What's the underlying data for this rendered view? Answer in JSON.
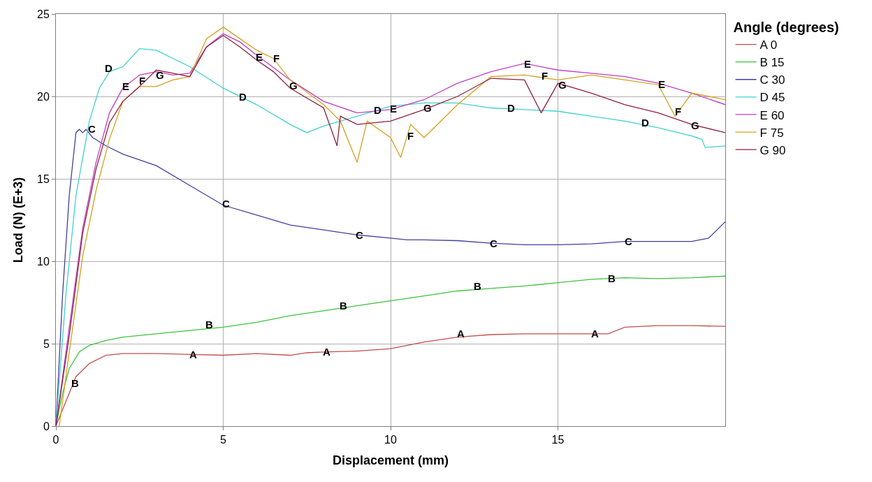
{
  "chart_data": {
    "type": "line",
    "xlabel": "Displacement (mm)",
    "ylabel": "Load (N) (E+3)",
    "legend_title": "Angle (degrees)",
    "legend": "right",
    "grid": true,
    "marker": "none",
    "line_style": "solid",
    "xlim": [
      0,
      20
    ],
    "xticks": [
      0,
      5,
      10,
      15
    ],
    "ylim": [
      0,
      25
    ],
    "yticks": [
      0,
      5,
      10,
      15,
      20,
      25
    ],
    "series": [
      {
        "name": "A 0",
        "color": "#c0504d",
        "x": [
          0,
          0.3,
          0.6,
          1,
          1.5,
          2,
          3,
          4,
          5,
          6,
          7,
          7.5,
          8,
          9,
          10,
          10.5,
          11,
          12,
          13,
          14,
          15,
          16,
          16.5,
          17,
          18,
          19,
          20
        ],
        "values": [
          0,
          1.5,
          3,
          3.8,
          4.3,
          4.4,
          4.4,
          4.35,
          4.3,
          4.4,
          4.3,
          4.45,
          4.5,
          4.55,
          4.7,
          4.9,
          5.1,
          5.4,
          5.55,
          5.6,
          5.6,
          5.6,
          5.6,
          6,
          6.1,
          6.1,
          6.05
        ]
      },
      {
        "name": "B 15",
        "color": "#40c040",
        "x": [
          0,
          0.2,
          0.4,
          0.7,
          1,
          1.5,
          2,
          3,
          4,
          5,
          6,
          7,
          8,
          9,
          10,
          11,
          12,
          13,
          14,
          15,
          16,
          17,
          18,
          19,
          20
        ],
        "values": [
          0,
          2,
          3.5,
          4.5,
          4.9,
          5.2,
          5.4,
          5.6,
          5.8,
          6,
          6.3,
          6.7,
          7,
          7.3,
          7.6,
          7.9,
          8.2,
          8.35,
          8.5,
          8.7,
          8.9,
          9,
          8.95,
          9,
          9.1
        ]
      },
      {
        "name": "C 30",
        "color": "#4040a0",
        "x": [
          0,
          0.2,
          0.4,
          0.6,
          0.7,
          0.8,
          0.9,
          1.1,
          1.5,
          2,
          3,
          4,
          5,
          6,
          7,
          8,
          9,
          10,
          10.5,
          11,
          12,
          13,
          14,
          15,
          16,
          17,
          18,
          19,
          19.5,
          20
        ],
        "values": [
          0,
          8,
          14,
          17.8,
          18,
          17.8,
          18,
          17.5,
          17,
          16.5,
          15.8,
          14.6,
          13.4,
          12.8,
          12.2,
          11.9,
          11.6,
          11.4,
          11.3,
          11.3,
          11.25,
          11.1,
          11,
          11,
          11.05,
          11.2,
          11.2,
          11.2,
          11.4,
          12.4
        ]
      },
      {
        "name": "D 45",
        "color": "#40d0d0",
        "x": [
          0,
          0.3,
          0.6,
          1,
          1.3,
          1.6,
          2,
          2.5,
          3,
          3.5,
          4,
          5,
          6,
          7,
          7.5,
          8,
          9,
          10,
          11,
          12,
          13,
          14,
          15,
          16,
          17,
          18,
          19,
          19.3,
          19.4,
          20
        ],
        "values": [
          0,
          8,
          14,
          18.5,
          20.5,
          21.5,
          21.8,
          22.9,
          22.8,
          22.3,
          21.8,
          20.5,
          19.5,
          18.3,
          17.8,
          18.2,
          18.8,
          19.4,
          19.6,
          19.6,
          19.3,
          19.2,
          19.1,
          18.8,
          18.5,
          18.1,
          17.6,
          17.4,
          16.9,
          17
        ]
      },
      {
        "name": "E 60",
        "color": "#c040c0",
        "x": [
          0,
          0.4,
          0.8,
          1.2,
          1.6,
          2,
          2.5,
          3,
          3.5,
          4,
          4.5,
          5,
          5.5,
          6,
          7,
          8,
          9,
          10,
          11,
          12,
          13,
          14,
          14.5,
          15,
          16,
          17,
          18,
          19,
          20
        ],
        "values": [
          0,
          6,
          12,
          16,
          19,
          20.5,
          21.3,
          21.5,
          21.3,
          21.4,
          23,
          23.8,
          23.3,
          22.5,
          21,
          19.7,
          19,
          19.2,
          19.8,
          20.8,
          21.5,
          22,
          21.8,
          21.6,
          21.4,
          21.2,
          20.8,
          20.2,
          19.5
        ]
      },
      {
        "name": "F 75",
        "color": "#d4a020",
        "x": [
          0.1,
          0.4,
          0.8,
          1.2,
          1.6,
          2,
          2.5,
          3,
          3.5,
          4,
          4.5,
          5,
          5.5,
          6,
          6.5,
          7,
          8,
          8.5,
          9,
          9.3,
          10,
          10.3,
          10.6,
          11,
          12,
          13,
          14,
          15,
          16,
          17,
          18,
          18.5,
          19,
          20
        ],
        "values": [
          0,
          4.5,
          10.3,
          14.3,
          17.4,
          19.7,
          20.6,
          20.6,
          21,
          21.2,
          23.5,
          24.2,
          23.5,
          22.8,
          22.3,
          21,
          19.5,
          18.5,
          16,
          18.5,
          17.5,
          16.3,
          18.3,
          17.5,
          19.5,
          21.2,
          21.3,
          21,
          21.3,
          21,
          20.7,
          18.8,
          20.2,
          19.8
        ]
      },
      {
        "name": "G 90",
        "color": "#902040",
        "x": [
          0,
          0.4,
          0.8,
          1.2,
          1.6,
          2,
          2.5,
          3,
          3.5,
          4,
          4.5,
          5,
          5.5,
          6,
          6.5,
          7,
          8,
          8.4,
          8.5,
          9,
          10,
          11,
          12,
          13,
          14,
          14.5,
          15,
          16,
          17,
          18,
          19,
          20
        ],
        "values": [
          0,
          5.5,
          11.7,
          15.6,
          18.4,
          19.7,
          20.6,
          21.6,
          21.4,
          21.2,
          23,
          23.7,
          23,
          22.2,
          21.5,
          20.5,
          19.3,
          17,
          18.8,
          18.3,
          18.5,
          19.2,
          20,
          21.1,
          21,
          19,
          20.8,
          20.2,
          19.5,
          19,
          18.3,
          17.8
        ]
      }
    ],
    "annotations": [
      {
        "text": "D",
        "x": 1.57,
        "y": 21.7
      },
      {
        "text": "E",
        "x": 2.08,
        "y": 20.6
      },
      {
        "text": "F",
        "x": 2.58,
        "y": 20.95
      },
      {
        "text": "G",
        "x": 3.11,
        "y": 21.3
      },
      {
        "text": "C",
        "x": 1.07,
        "y": 18.05
      },
      {
        "text": "D",
        "x": 5.58,
        "y": 19.96
      },
      {
        "text": "E",
        "x": 6.07,
        "y": 22.4
      },
      {
        "text": "F",
        "x": 6.59,
        "y": 22.3
      },
      {
        "text": "G",
        "x": 7.1,
        "y": 20.65
      },
      {
        "text": "D",
        "x": 9.61,
        "y": 19.17
      },
      {
        "text": "E",
        "x": 10.09,
        "y": 19.25
      },
      {
        "text": "G",
        "x": 11.1,
        "y": 19.3
      },
      {
        "text": "F",
        "x": 10.6,
        "y": 17.6
      },
      {
        "text": "D",
        "x": 13.6,
        "y": 19.3
      },
      {
        "text": "E",
        "x": 14.1,
        "y": 21.95
      },
      {
        "text": "F",
        "x": 14.6,
        "y": 21.25
      },
      {
        "text": "G",
        "x": 15.13,
        "y": 20.7
      },
      {
        "text": "E",
        "x": 18.1,
        "y": 20.74
      },
      {
        "text": "F",
        "x": 18.6,
        "y": 19.1
      },
      {
        "text": "G",
        "x": 19.1,
        "y": 18.25
      },
      {
        "text": "D",
        "x": 17.6,
        "y": 18.4
      },
      {
        "text": "C",
        "x": 5.09,
        "y": 13.5
      },
      {
        "text": "C",
        "x": 9.08,
        "y": 11.6
      },
      {
        "text": "C",
        "x": 13.07,
        "y": 11.1
      },
      {
        "text": "C",
        "x": 17.1,
        "y": 11.2
      },
      {
        "text": "B",
        "x": 0.58,
        "y": 2.6
      },
      {
        "text": "B",
        "x": 4.59,
        "y": 6.15
      },
      {
        "text": "B",
        "x": 8.6,
        "y": 7.3
      },
      {
        "text": "B",
        "x": 12.6,
        "y": 8.5
      },
      {
        "text": "B",
        "x": 16.6,
        "y": 8.96
      },
      {
        "text": "A",
        "x": 4.1,
        "y": 4.35
      },
      {
        "text": "A",
        "x": 8.1,
        "y": 4.5
      },
      {
        "text": "A",
        "x": 12.1,
        "y": 5.6
      },
      {
        "text": "A",
        "x": 16.1,
        "y": 5.6
      }
    ]
  }
}
